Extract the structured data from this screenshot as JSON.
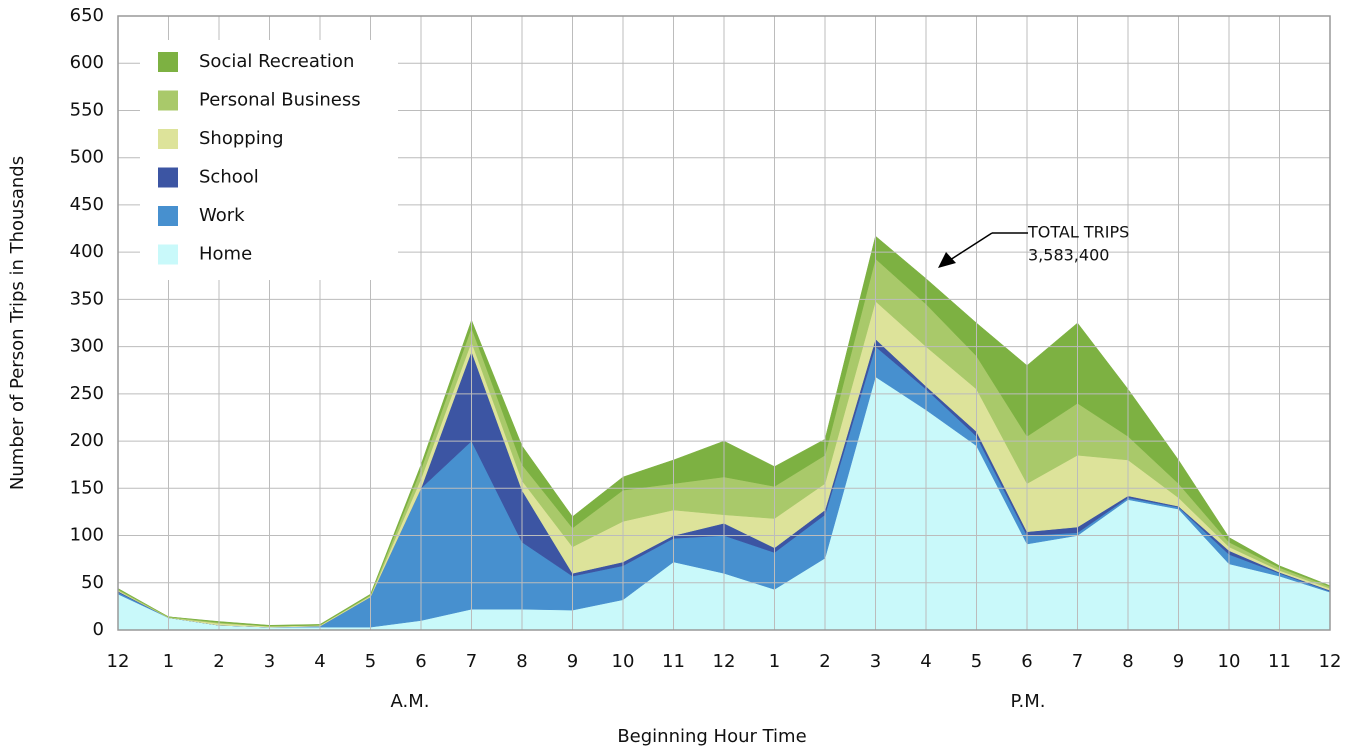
{
  "chart_data": {
    "type": "stacked_area",
    "x_label": "Beginning Hour Time",
    "y_label": "Number of Person Trips in Thousands",
    "am_label": "A.M.",
    "pm_label": "P.M.",
    "annotation_title": "TOTAL TRIPS",
    "annotation_value": "3,583,400",
    "categories": [
      "12",
      "1",
      "2",
      "3",
      "4",
      "5",
      "6",
      "7",
      "8",
      "9",
      "10",
      "11",
      "12",
      "1",
      "2",
      "3",
      "4",
      "5",
      "6",
      "7",
      "8",
      "9",
      "10",
      "11",
      "12"
    ],
    "ylim": [
      0,
      650
    ],
    "yticks": [
      0,
      50,
      100,
      150,
      200,
      250,
      300,
      350,
      400,
      450,
      500,
      550,
      600,
      650
    ],
    "grid": true,
    "legend": "upper left",
    "series": [
      {
        "name": "Home",
        "color": "#c9f9fa",
        "values": [
          38,
          13,
          5,
          3,
          3,
          3,
          10,
          22,
          22,
          21,
          32,
          72,
          60,
          43,
          76,
          268,
          233,
          195,
          91,
          100,
          138,
          128,
          70,
          57,
          40
        ]
      },
      {
        "name": "Work",
        "color": "#4790cf",
        "values": [
          2,
          0,
          0,
          0,
          1,
          32,
          140,
          178,
          71,
          36,
          36,
          25,
          40,
          39,
          46,
          32,
          22,
          10,
          9,
          3,
          2,
          2,
          10,
          3,
          1
        ]
      },
      {
        "name": "School",
        "color": "#3c55a3",
        "values": [
          1,
          0,
          0,
          0,
          0,
          0,
          0,
          95,
          55,
          3,
          4,
          3,
          13,
          5,
          5,
          8,
          3,
          5,
          4,
          6,
          2,
          1,
          4,
          1,
          1
        ]
      },
      {
        "name": "Shopping",
        "color": "#dde39a",
        "values": [
          1,
          0,
          2,
          1,
          1,
          1,
          10,
          10,
          10,
          28,
          43,
          27,
          9,
          31,
          28,
          40,
          42,
          45,
          51,
          76,
          38,
          9,
          4,
          2,
          2
        ]
      },
      {
        "name": "Personal Business",
        "color": "#a9c96a",
        "values": [
          1,
          1,
          1,
          0,
          0,
          1,
          10,
          15,
          17,
          20,
          33,
          28,
          40,
          34,
          30,
          45,
          45,
          35,
          50,
          55,
          25,
          15,
          5,
          3,
          2
        ]
      },
      {
        "name": "Social Recreation",
        "color": "#7db142",
        "values": [
          1,
          0,
          1,
          1,
          1,
          1,
          5,
          8,
          20,
          12,
          14,
          25,
          38,
          21,
          17,
          24,
          27,
          35,
          75,
          85,
          50,
          25,
          5,
          2,
          1
        ]
      }
    ]
  }
}
